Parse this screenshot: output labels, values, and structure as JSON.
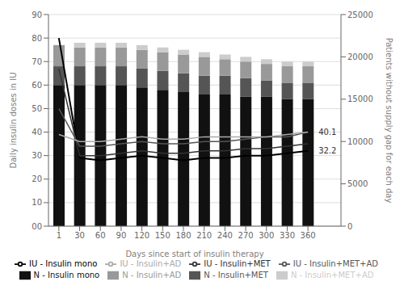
{
  "chart_data": {
    "type": "bar",
    "stacked": true,
    "grid": true,
    "legend": "bottom",
    "xlabel": "Days since start of insulin therapy",
    "ylabel": "Daily insulin doses in IU",
    "y2label": "Patients without supply gap for each day",
    "categories": [
      "1",
      "30",
      "60",
      "90",
      "120",
      "150",
      "180",
      "210",
      "240",
      "270",
      "300",
      "330",
      "360"
    ],
    "ylim": [
      0,
      90
    ],
    "yticks": [
      {
        "value": 0,
        "label": "00"
      },
      10,
      20,
      30,
      40,
      50,
      60,
      70,
      80,
      90
    ],
    "y2lim": [
      0,
      25000
    ],
    "y2ticks": [
      0,
      5000,
      10000,
      15000,
      20000,
      25000
    ],
    "annotations": [
      {
        "text": "40.1",
        "y": 40.1
      },
      {
        "text": "32.2",
        "y": 32.2
      }
    ],
    "series": [
      {
        "name": "N - Insulin mono",
        "type": "bar",
        "color": "#111111",
        "values": [
          60,
          60,
          60,
          60,
          59,
          58,
          57,
          56,
          56,
          55,
          55,
          54,
          54
        ]
      },
      {
        "name": "N - Insulin+MET",
        "type": "bar",
        "color": "#555555",
        "values": [
          8,
          8,
          8,
          8,
          8,
          8,
          8,
          8,
          8,
          8,
          7,
          7,
          7
        ]
      },
      {
        "name": "N - Insulin+AD",
        "type": "bar",
        "color": "#999999",
        "values": [
          9,
          8,
          8,
          8,
          8,
          8,
          8,
          8,
          7,
          7,
          7,
          7,
          7
        ]
      },
      {
        "name": "N - Insulin+MET+AD",
        "type": "bar",
        "color": "#cccccc",
        "values": [
          0,
          2,
          2,
          2,
          2,
          2,
          2,
          2,
          2,
          2,
          2,
          2,
          2
        ]
      },
      {
        "name": "IU - Insulin mono",
        "type": "line",
        "color": "#000000",
        "values": [
          80,
          29,
          28,
          29,
          30,
          29,
          28,
          29,
          29,
          30,
          30,
          31,
          32
        ]
      },
      {
        "name": "IU - Insulin+MET",
        "type": "line",
        "color": "#333333",
        "values": [
          67,
          30,
          30,
          31,
          32,
          31,
          31,
          32,
          32,
          33,
          33,
          34,
          35
        ]
      },
      {
        "name": "IU - Insulin+MET+AD",
        "type": "line",
        "color": "#555555",
        "values": [
          50,
          34,
          34,
          35,
          36,
          35,
          35,
          36,
          36,
          37,
          38,
          38,
          40
        ]
      },
      {
        "name": "IU - Insulin+AD",
        "type": "line",
        "color": "#aaaaaa",
        "values": [
          39,
          36,
          36,
          37,
          38,
          37,
          37,
          38,
          38,
          38,
          38,
          39,
          40
        ]
      }
    ]
  }
}
